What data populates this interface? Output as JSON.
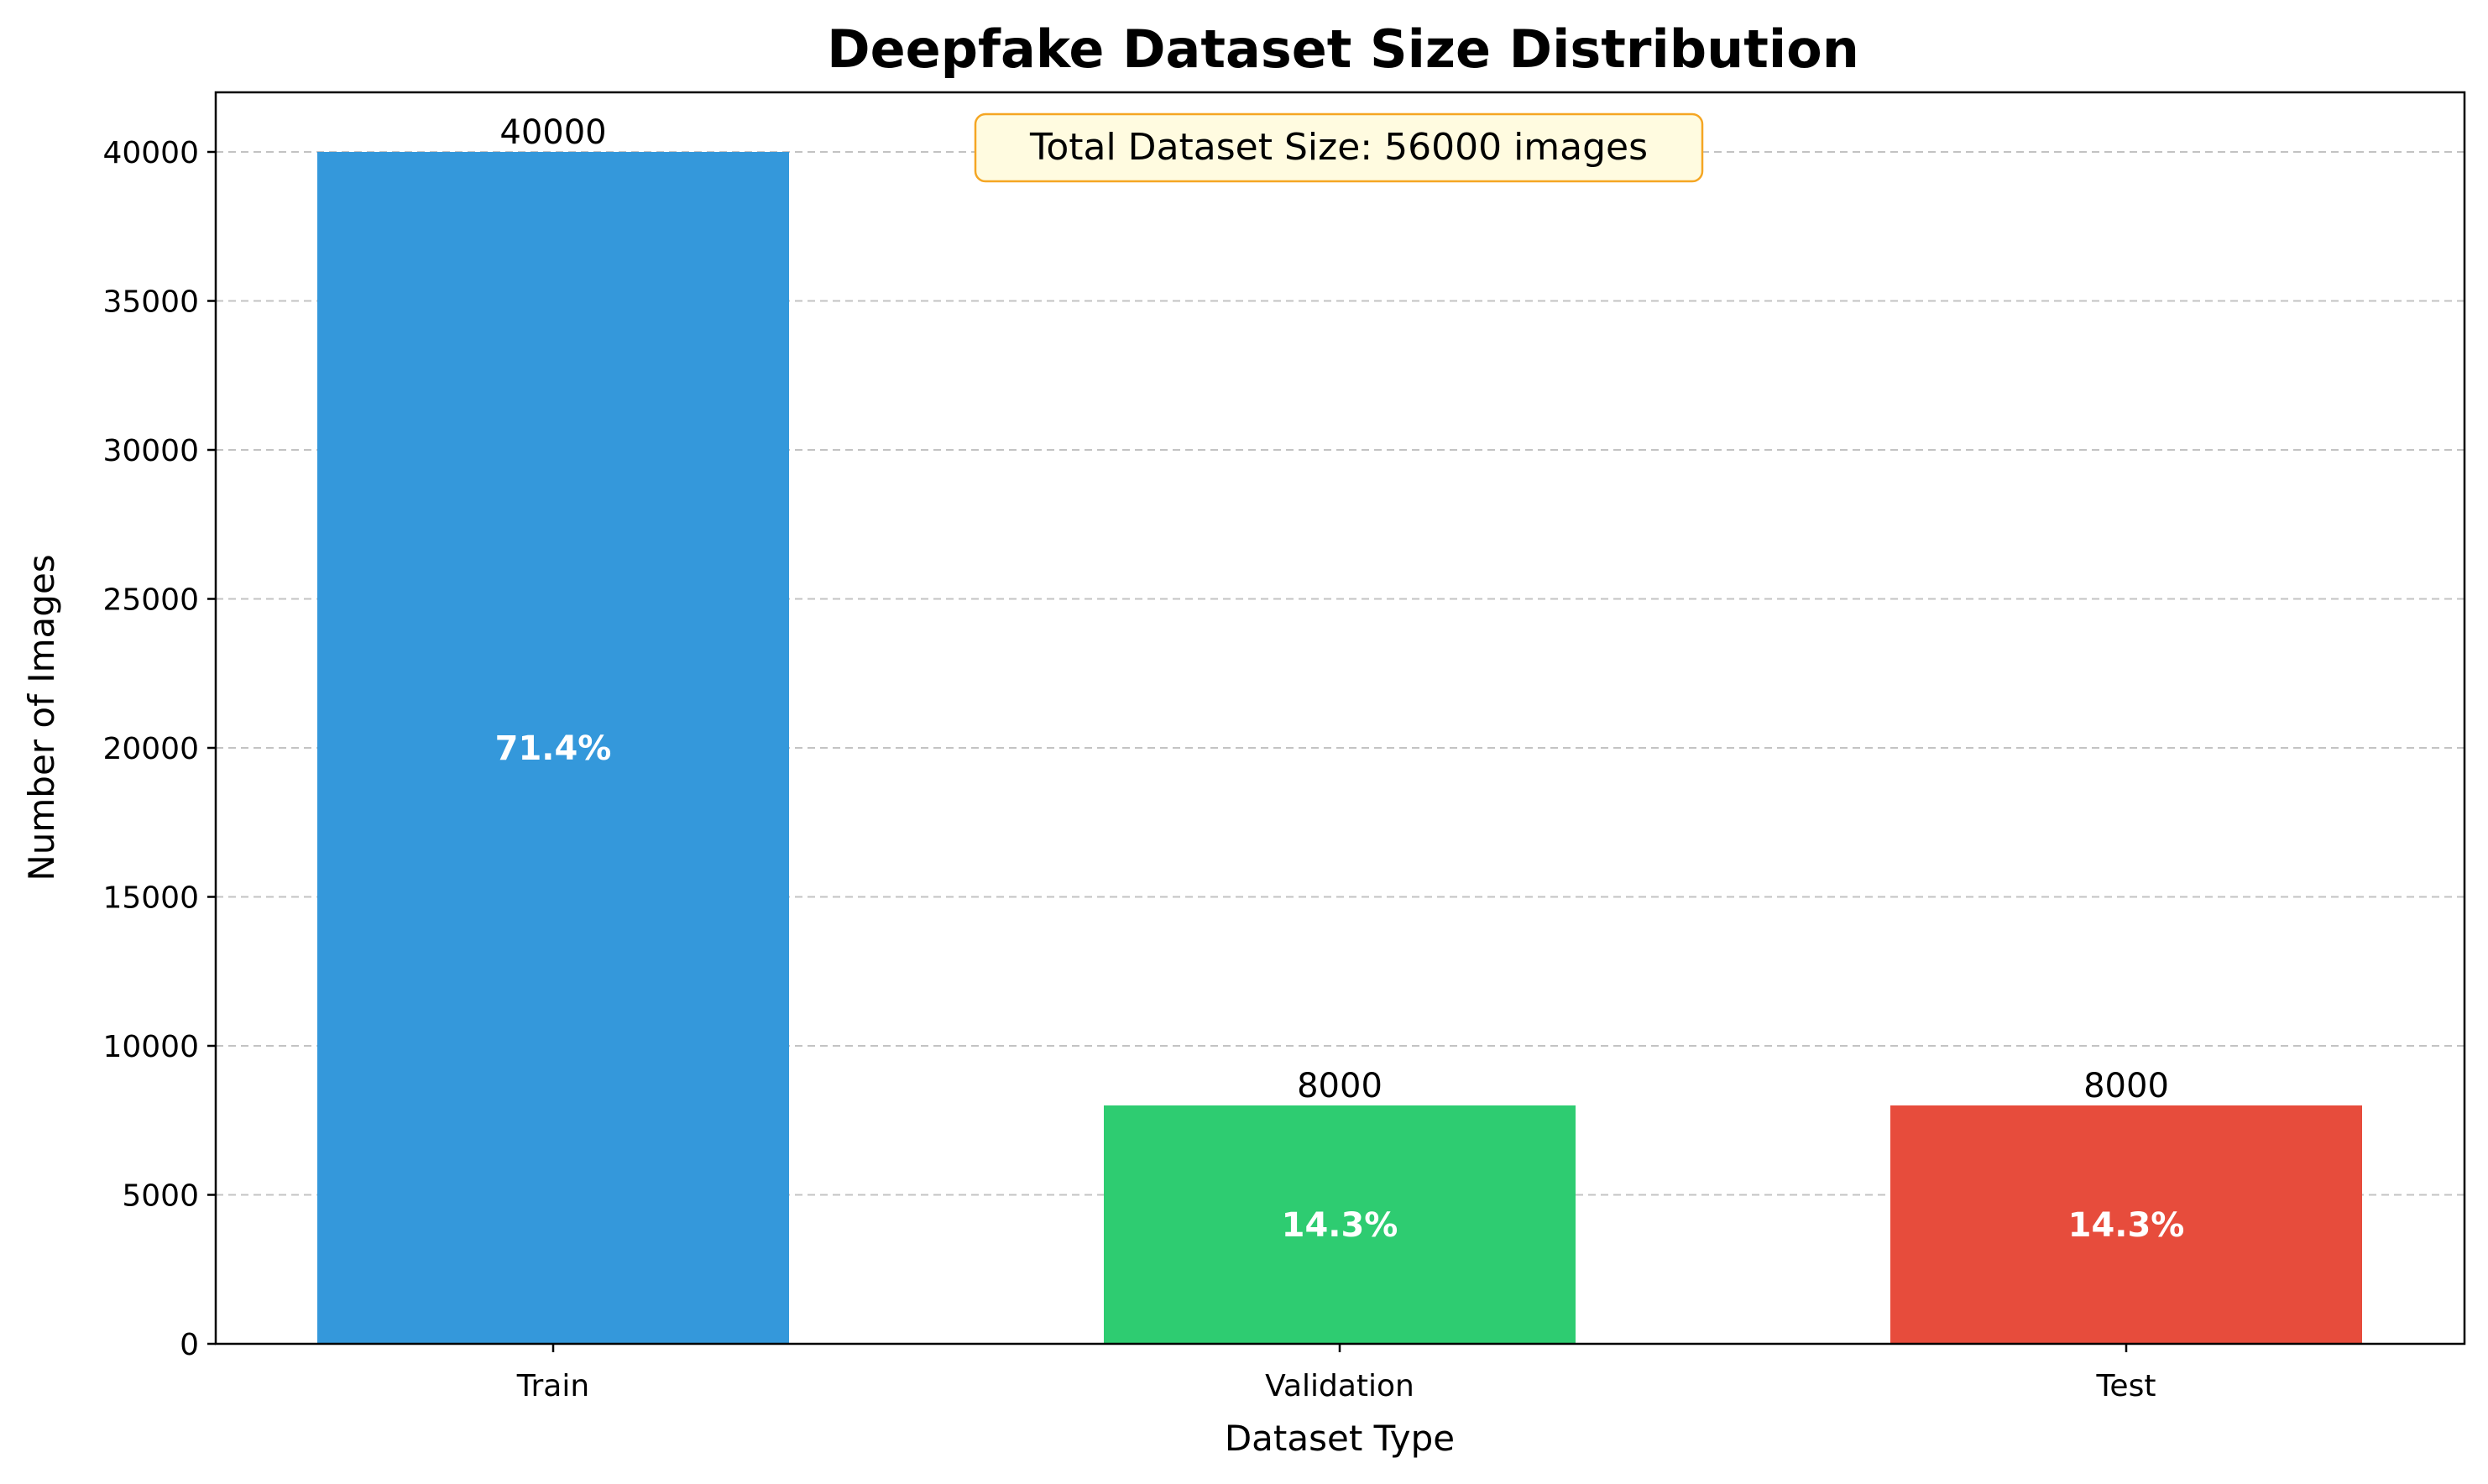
{
  "chart_data": {
    "type": "bar",
    "title": "Deepfake Dataset Size Distribution",
    "xlabel": "Dataset Type",
    "ylabel": "Number of Images",
    "categories": [
      "Train",
      "Validation",
      "Test"
    ],
    "values": [
      40000,
      8000,
      8000
    ],
    "value_labels": [
      "40000",
      "8000",
      "8000"
    ],
    "percent_labels": [
      "71.4%",
      "14.3%",
      "14.3%"
    ],
    "colors": [
      "#3498db",
      "#2ecc71",
      "#e74c3c"
    ],
    "ylim": [
      0,
      42000
    ],
    "yticks": [
      0,
      5000,
      10000,
      15000,
      20000,
      25000,
      30000,
      35000,
      40000
    ],
    "grid": "y-dashed",
    "annotation": {
      "text": "Total Dataset Size: 56000 images",
      "box_fill": "#fffbe0",
      "box_stroke": "#f5a623"
    }
  }
}
